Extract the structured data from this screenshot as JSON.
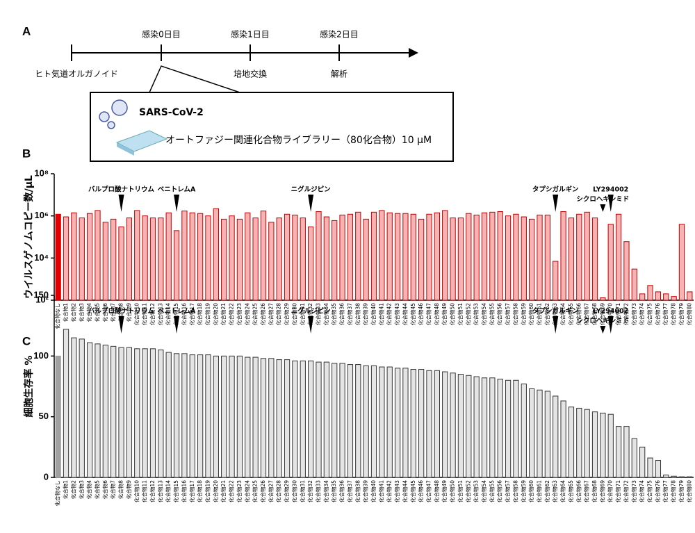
{
  "panels": {
    "a": "A",
    "b": "B",
    "c": "C"
  },
  "timeline": {
    "days": [
      "感染0日目",
      "感染1日目",
      "感染2日目"
    ],
    "events": [
      "ヒト気道オルガノイド",
      "培地交換",
      "解析"
    ],
    "virus": "SARS-CoV-2",
    "library": "オートファジー関連化合物ライブラリー（80化合物）10 µM"
  },
  "chart_data": [
    {
      "type": "bar",
      "log_scale": true,
      "y_label": "ウイルスゲノムコピー数/µL",
      "color": "#f7b3b3",
      "edge_color": "#c00000",
      "control_color": "#e00000",
      "categories": [
        "化合物なし",
        "化合物1",
        "化合物2",
        "化合物3",
        "化合物4",
        "化合物5",
        "化合物6",
        "化合物7",
        "化合物8",
        "化合物9",
        "化合物10",
        "化合物11",
        "化合物12",
        "化合物13",
        "化合物14",
        "化合物15",
        "化合物16",
        "化合物17",
        "化合物18",
        "化合物19",
        "化合物20",
        "化合物21",
        "化合物22",
        "化合物23",
        "化合物24",
        "化合物25",
        "化合物26",
        "化合物27",
        "化合物28",
        "化合物29",
        "化合物30",
        "化合物31",
        "化合物32",
        "化合物33",
        "化合物34",
        "化合物35",
        "化合物36",
        "化合物37",
        "化合物38",
        "化合物39",
        "化合物40",
        "化合物41",
        "化合物42",
        "化合物43",
        "化合物44",
        "化合物45",
        "化合物46",
        "化合物47",
        "化合物48",
        "化合物49",
        "化合物50",
        "化合物51",
        "化合物52",
        "化合物53",
        "化合物54",
        "化合物55",
        "化合物56",
        "化合物57",
        "化合物58",
        "化合物59",
        "化合物60",
        "化合物61",
        "化合物62",
        "化合物63",
        "化合物64",
        "化合物65",
        "化合物66",
        "化合物67",
        "化合物68",
        "化合物69",
        "化合物70",
        "化合物71",
        "化合物72",
        "化合物73",
        "化合物74",
        "化合物75",
        "化合物76",
        "化合物77",
        "化合物78",
        "化合物79",
        "化合物80"
      ],
      "values": [
        1200000,
        900000,
        1400000,
        800000,
        1300000,
        1800000,
        500000,
        700000,
        300000,
        800000,
        1800000,
        1000000,
        800000,
        800000,
        1400000,
        200000,
        1700000,
        1400000,
        1300000,
        1000000,
        2200000,
        700000,
        1000000,
        700000,
        1400000,
        800000,
        1700000,
        500000,
        800000,
        1200000,
        1100000,
        800000,
        300000,
        1600000,
        900000,
        600000,
        1100000,
        1200000,
        1500000,
        700000,
        1500000,
        1800000,
        1400000,
        1300000,
        1300000,
        1200000,
        700000,
        1200000,
        1400000,
        1800000,
        800000,
        800000,
        1300000,
        1100000,
        1400000,
        1500000,
        1600000,
        1000000,
        1200000,
        900000,
        700000,
        1100000,
        1100000,
        7000,
        1600000,
        800000,
        1200000,
        1500000,
        800000,
        130,
        400000,
        1200000,
        60000,
        3000,
        200,
        500,
        250,
        200,
        150,
        400000,
        250
      ],
      "ylim": [
        100,
        100000000
      ],
      "yticks": [
        {
          "value": 100,
          "label": "10²"
        },
        {
          "value": 10000,
          "label": "10⁴"
        },
        {
          "value": 1000000,
          "label": "10⁶"
        },
        {
          "value": 100000000,
          "label": "10⁸"
        }
      ],
      "annotations": [
        {
          "text": "バルプロ酸ナトリウム",
          "category": "化合物8"
        },
        {
          "text": "ベニトレムA",
          "category": "化合物15"
        },
        {
          "text": "ニグルジピン",
          "category": "化合物32"
        },
        {
          "text": "タプシガルギン",
          "category": "化合物63"
        },
        {
          "text": "シクロヘキシミド",
          "category": "化合物69"
        },
        {
          "text": "LY294002",
          "category": "化合物70"
        }
      ]
    },
    {
      "type": "bar",
      "log_scale": false,
      "y_label": "細胞生存率 %",
      "color": "#e4e4e4",
      "edge_color": "#333333",
      "control_color": "#a0a0a0",
      "categories": [
        "化合物なし",
        "化合物1",
        "化合物2",
        "化合物3",
        "化合物4",
        "化合物5",
        "化合物6",
        "化合物7",
        "化合物8",
        "化合物9",
        "化合物10",
        "化合物11",
        "化合物12",
        "化合物13",
        "化合物14",
        "化合物15",
        "化合物16",
        "化合物17",
        "化合物18",
        "化合物19",
        "化合物20",
        "化合物21",
        "化合物22",
        "化合物23",
        "化合物24",
        "化合物25",
        "化合物26",
        "化合物27",
        "化合物28",
        "化合物29",
        "化合物30",
        "化合物31",
        "化合物32",
        "化合物33",
        "化合物34",
        "化合物35",
        "化合物36",
        "化合物37",
        "化合物38",
        "化合物39",
        "化合物40",
        "化合物41",
        "化合物42",
        "化合物43",
        "化合物44",
        "化合物45",
        "化合物46",
        "化合物47",
        "化合物48",
        "化合物49",
        "化合物50",
        "化合物51",
        "化合物52",
        "化合物53",
        "化合物54",
        "化合物55",
        "化合物56",
        "化合物57",
        "化合物58",
        "化合物59",
        "化合物60",
        "化合物61",
        "化合物62",
        "化合物63",
        "化合物64",
        "化合物65",
        "化合物66",
        "化合物67",
        "化合物68",
        "化合物69",
        "化合物70",
        "化合物71",
        "化合物72",
        "化合物73",
        "化合物74",
        "化合物75",
        "化合物76",
        "化合物77",
        "化合物78",
        "化合物79",
        "化合物80"
      ],
      "values": [
        100,
        122,
        115,
        114,
        111,
        110,
        109,
        108,
        107,
        107,
        106,
        106,
        106,
        105,
        103,
        102,
        102,
        101,
        101,
        101,
        100,
        100,
        100,
        100,
        99,
        99,
        98,
        98,
        97,
        97,
        96,
        96,
        96,
        95,
        95,
        94,
        94,
        93,
        93,
        92,
        92,
        91,
        91,
        90,
        90,
        89,
        89,
        88,
        88,
        87,
        86,
        85,
        84,
        83,
        82,
        82,
        81,
        80,
        80,
        77,
        73,
        72,
        71,
        67,
        63,
        58,
        57,
        56,
        54,
        53,
        52,
        42,
        42,
        32,
        25,
        16,
        14,
        2,
        1,
        0.5,
        0.5
      ],
      "ylim": [
        0,
        150
      ],
      "yticks": [
        0,
        50,
        100,
        150
      ],
      "annotations": [
        {
          "text": "バルプロ酸ナトリウム",
          "category": "化合物8"
        },
        {
          "text": "ベニトレムA",
          "category": "化合物15"
        },
        {
          "text": "ニグルジピン",
          "category": "化合物32"
        },
        {
          "text": "タプシガルギン",
          "category": "化合物63"
        },
        {
          "text": "シクロヘキシミド",
          "category": "化合物69"
        },
        {
          "text": "LY294002",
          "category": "化合物70"
        }
      ]
    }
  ]
}
